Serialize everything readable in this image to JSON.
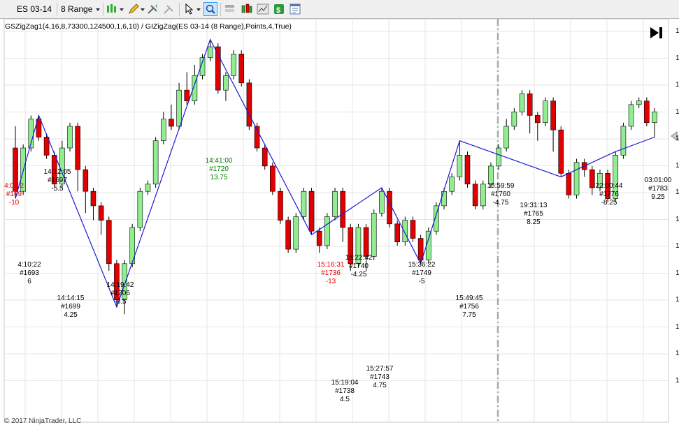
{
  "toolbar": {
    "instrument": "ES 03-14",
    "bar_type": "8 Range",
    "icons": [
      "bar-type-icon",
      "pencil-draw-icon",
      "add-indicator-icon",
      "strategy-icon",
      "data-box-icon",
      "cursor-select-icon",
      "zoom-icon",
      "panel-layout-icon",
      "chart-style-icon",
      "chart-trader-icon",
      "strategies-icon",
      "properties-icon"
    ]
  },
  "indicator_label": "GSZigZag1(4,16,8,73300,124500,1,6,10) / GIZigZag(ES 03-14 (8 Range),Points,4,True)",
  "nav_button_icon": "scroll-to-end-icon",
  "copyright": "© 2017 NinjaTrader, LLC",
  "y_axis_ticks": [
    "1",
    "1",
    "1",
    "1",
    "1",
    "1",
    "1",
    "1",
    "1",
    "1",
    "1",
    "1",
    "1",
    "1"
  ],
  "colors": {
    "up_candle": "#90ee90",
    "down_candle": "#e00000",
    "zigzag": "#1a1ad6",
    "label_red": "#e00000",
    "label_green": "#008000",
    "label_black": "#000000"
  },
  "chart_data": {
    "type": "candlestick",
    "note_units": "price ticks",
    "ylim": [
      0,
      100
    ],
    "candles": [
      [
        72,
        60,
        78,
        58
      ],
      [
        60,
        72,
        73,
        59
      ],
      [
        72,
        80,
        81,
        71
      ],
      [
        80,
        75,
        81,
        74
      ],
      [
        75,
        70,
        76,
        69
      ],
      [
        70,
        62,
        71,
        61
      ],
      [
        62,
        72,
        74,
        61
      ],
      [
        72,
        78,
        79,
        71
      ],
      [
        78,
        66,
        79,
        60
      ],
      [
        66,
        60,
        67,
        54
      ],
      [
        60,
        56,
        61,
        52
      ],
      [
        56,
        52,
        57,
        48
      ],
      [
        52,
        40,
        53,
        38
      ],
      [
        40,
        30,
        41,
        28
      ],
      [
        30,
        40,
        41,
        26
      ],
      [
        40,
        50,
        51,
        39
      ],
      [
        50,
        60,
        61,
        49
      ],
      [
        60,
        62,
        63,
        59
      ],
      [
        62,
        74,
        75,
        61
      ],
      [
        74,
        80,
        82,
        73
      ],
      [
        80,
        78,
        84,
        77
      ],
      [
        78,
        88,
        90,
        77
      ],
      [
        88,
        85,
        93,
        84
      ],
      [
        85,
        92,
        95,
        84
      ],
      [
        92,
        97,
        98,
        91
      ],
      [
        97,
        100,
        102,
        96
      ],
      [
        100,
        88,
        101,
        87
      ],
      [
        88,
        92,
        93,
        85
      ],
      [
        92,
        98,
        99,
        91
      ],
      [
        98,
        90,
        99,
        89
      ],
      [
        90,
        78,
        91,
        77
      ],
      [
        78,
        72,
        79,
        71
      ],
      [
        72,
        67,
        73,
        66
      ],
      [
        67,
        60,
        68,
        59
      ],
      [
        60,
        52,
        61,
        51
      ],
      [
        52,
        44,
        53,
        43
      ],
      [
        44,
        53,
        54,
        43
      ],
      [
        53,
        60,
        61,
        52
      ],
      [
        60,
        49,
        61,
        48
      ],
      [
        49,
        45,
        50,
        43
      ],
      [
        45,
        53,
        54,
        44
      ],
      [
        53,
        60,
        61,
        52
      ],
      [
        60,
        50,
        61,
        46
      ],
      [
        50,
        40,
        51,
        38
      ],
      [
        40,
        50,
        51,
        39
      ],
      [
        50,
        42,
        51,
        38
      ],
      [
        42,
        54,
        55,
        41
      ],
      [
        54,
        60,
        61,
        53
      ],
      [
        60,
        51,
        61,
        50
      ],
      [
        51,
        46,
        52,
        45
      ],
      [
        46,
        52,
        53,
        45
      ],
      [
        52,
        47,
        53,
        46
      ],
      [
        47,
        41,
        48,
        40
      ],
      [
        41,
        49,
        50,
        40
      ],
      [
        49,
        56,
        57,
        48
      ],
      [
        56,
        60,
        61,
        55
      ],
      [
        60,
        64,
        65,
        59
      ],
      [
        64,
        70,
        74,
        63
      ],
      [
        70,
        62,
        71,
        61
      ],
      [
        62,
        56,
        63,
        55
      ],
      [
        56,
        62,
        63,
        55
      ],
      [
        62,
        67,
        68,
        61
      ],
      [
        67,
        72,
        73,
        66
      ],
      [
        72,
        78,
        80,
        71
      ],
      [
        78,
        82,
        83,
        77
      ],
      [
        82,
        87,
        88,
        81
      ],
      [
        87,
        81,
        88,
        76
      ],
      [
        81,
        79,
        82,
        74
      ],
      [
        79,
        85,
        86,
        78
      ],
      [
        85,
        77,
        86,
        71
      ],
      [
        77,
        65,
        78,
        64
      ],
      [
        65,
        59,
        66,
        58
      ],
      [
        59,
        68,
        69,
        58
      ],
      [
        68,
        66,
        69,
        64
      ],
      [
        66,
        61,
        67,
        59
      ],
      [
        61,
        65,
        66,
        60
      ],
      [
        65,
        58,
        66,
        57
      ],
      [
        58,
        70,
        71,
        57
      ],
      [
        70,
        78,
        79,
        69
      ],
      [
        78,
        84,
        85,
        77
      ],
      [
        84,
        85,
        86,
        83
      ],
      [
        85,
        79,
        86,
        78
      ],
      [
        79,
        82,
        83,
        75
      ]
    ],
    "annotations": [
      {
        "time": "4:09:2",
        "bar": "#169",
        "value": "-10",
        "color": "red"
      },
      {
        "time": "4:10:22",
        "bar": "#1693",
        "value": "6",
        "color": "black"
      },
      {
        "time": "14:12:05",
        "bar": "#1697",
        "value": "-5.5",
        "color": "black"
      },
      {
        "time": "14:14:15",
        "bar": "#1699",
        "value": "4.25",
        "color": "black"
      },
      {
        "time": "14:19:42",
        "bar": "#1706",
        "value": "-8.5",
        "color": "black"
      },
      {
        "time": "14:41:00",
        "bar": "#1720",
        "value": "13.75",
        "color": "green"
      },
      {
        "time": "15:16:31",
        "bar": "#1736",
        "value": "-13",
        "color": "red"
      },
      {
        "time": "15:19:04",
        "bar": "#1738",
        "value": "4.5",
        "color": "black"
      },
      {
        "time": "15:22:42",
        "bar": "#1740",
        "value": "-4.25",
        "color": "black"
      },
      {
        "time": "15:27:57",
        "bar": "#1743",
        "value": "4.75",
        "color": "black"
      },
      {
        "time": "15:36:22",
        "bar": "#1749",
        "value": "-5",
        "color": "black"
      },
      {
        "time": "15:49:45",
        "bar": "#1756",
        "value": "7.75",
        "color": "black"
      },
      {
        "time": "15:59:59",
        "bar": "#1760",
        "value": "-4.75",
        "color": "black"
      },
      {
        "time": "19:31:13",
        "bar": "#1765",
        "value": "8.25",
        "color": "black"
      },
      {
        "time": "22:00:44",
        "bar": "#1776",
        "value": "-8.25",
        "color": "black"
      },
      {
        "time": "03:01:00",
        "bar": "#1783",
        "value": "9.25",
        "color": "black"
      }
    ]
  }
}
